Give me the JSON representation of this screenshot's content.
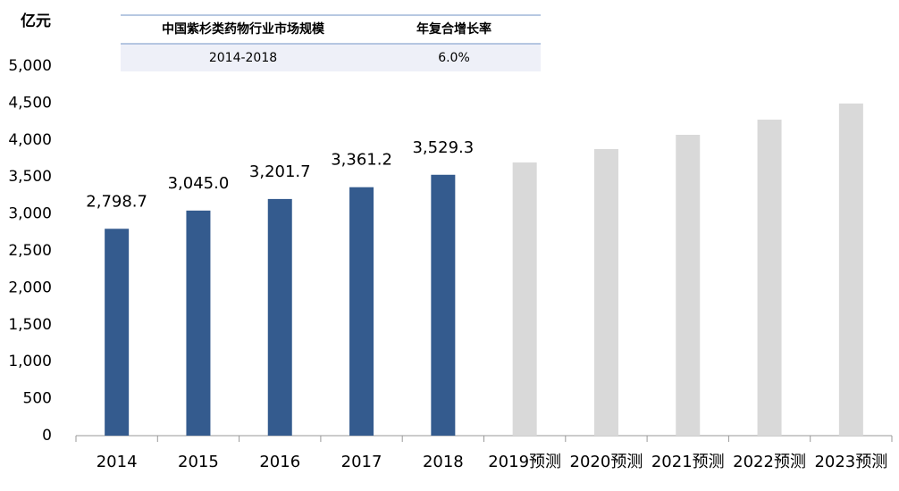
{
  "chart_data": {
    "type": "bar",
    "y_label": "亿元",
    "categories": [
      "2014",
      "2015",
      "2016",
      "2017",
      "2018",
      "2019预测",
      "2020预测",
      "2021预测",
      "2022预测",
      "2023预测"
    ],
    "values": [
      2798.7,
      3045.0,
      3201.7,
      3361.2,
      3529.3,
      3696,
      3877,
      4070,
      4275,
      4493
    ],
    "value_labels": [
      "2,798.7",
      "3,045.0",
      "3,201.7",
      "3,361.2",
      "3,529.3",
      null,
      null,
      null,
      null,
      null
    ],
    "colors": [
      "#345b8e",
      "#345b8e",
      "#345b8e",
      "#345b8e",
      "#345b8e",
      "#d9d9d9",
      "#d9d9d9",
      "#d9d9d9",
      "#d9d9d9",
      "#d9d9d9"
    ],
    "ylim": [
      0,
      5000
    ],
    "yticks": [
      0,
      500,
      {
        "value": 1000,
        "label": "1,000"
      },
      {
        "value": 1500,
        "label": "1,500"
      },
      {
        "value": 2000,
        "label": "2,000"
      },
      {
        "value": 2500,
        "label": "2,500"
      },
      {
        "value": 3000,
        "label": "3,000"
      },
      {
        "value": 3500,
        "label": "3,500"
      },
      {
        "value": 4000,
        "label": "4,000"
      },
      {
        "value": 4500,
        "label": "4,500"
      },
      {
        "value": 5000,
        "label": "5,000"
      }
    ],
    "grid": false,
    "table": {
      "columns": [
        "中国紫杉类药物行业市场规模",
        "年复合增长率"
      ],
      "rows": [
        [
          "2014-2018",
          "6.0%"
        ]
      ]
    }
  }
}
